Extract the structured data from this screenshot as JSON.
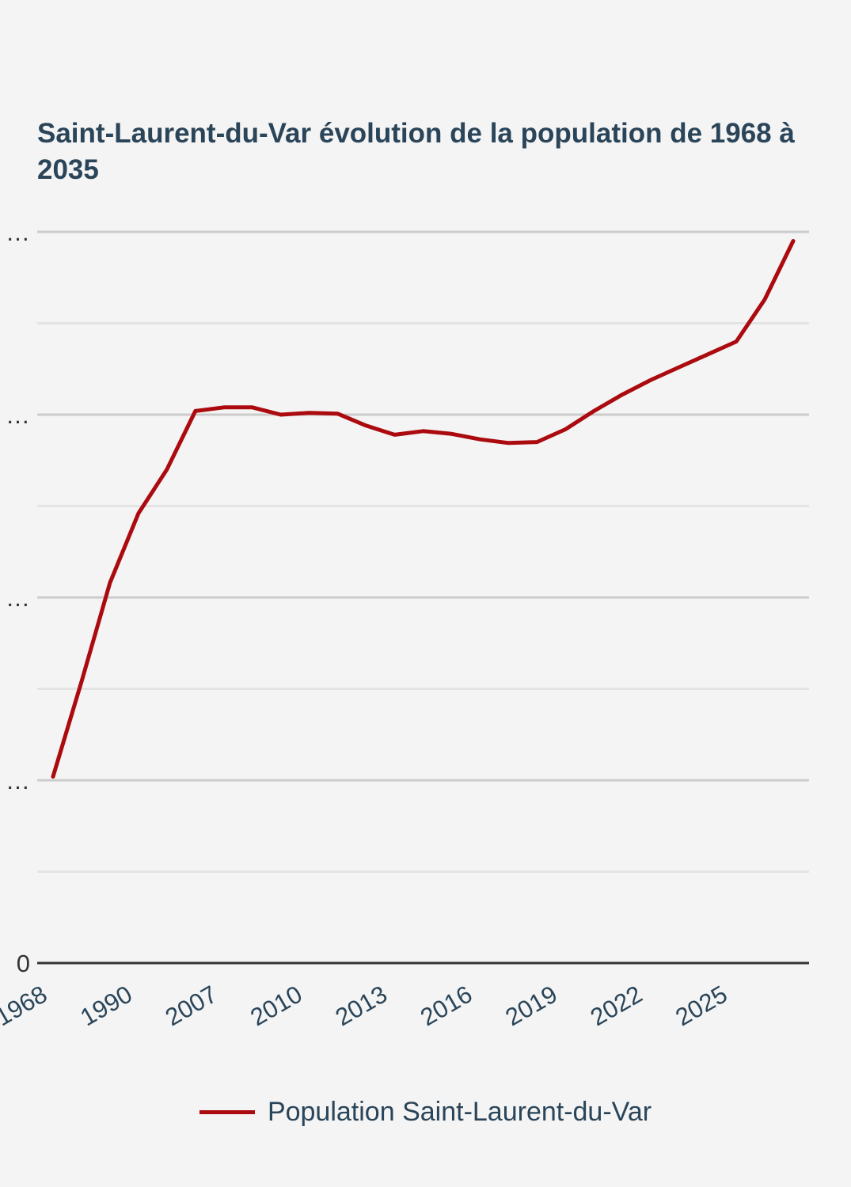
{
  "chart_data": {
    "type": "line",
    "title": "Saint-Laurent-du-Var évolution de la population de 1968 à 2035",
    "x_tick_labels": [
      "1968",
      "1990",
      "2007",
      "2010",
      "2013",
      "2016",
      "2019",
      "2022",
      "2025"
    ],
    "y_tick_labels": [
      "…",
      "…",
      "…",
      "…",
      "0"
    ],
    "ylim": [
      0,
      40000
    ],
    "y_major_ticks": [
      0,
      10000,
      20000,
      30000,
      40000
    ],
    "y_minor_ticks": [
      5000,
      15000,
      25000,
      35000
    ],
    "grid": true,
    "legend_position": "bottom",
    "series": [
      {
        "name": "Population Saint-Laurent-du-Var",
        "color": "#ab0a0e",
        "values": [
          10200,
          15400,
          20800,
          24600,
          27000,
          30200,
          30400,
          30400,
          30000,
          30100,
          30050,
          29400,
          28900,
          29100,
          28950,
          28650,
          28450,
          28500,
          29200,
          30200,
          31100,
          31900,
          32600,
          33300,
          34000,
          36300,
          39500
        ]
      }
    ]
  }
}
